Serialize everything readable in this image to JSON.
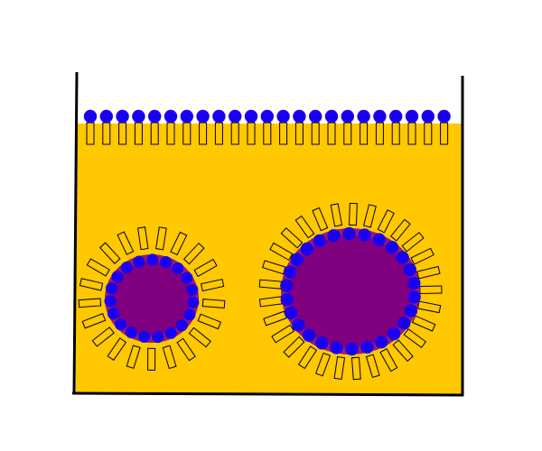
{
  "colors": {
    "background": "#ffffff",
    "liquid": "#ffc800",
    "head": "#1a00f0",
    "tail_fill": "#ffc800",
    "tail_stroke": "#000000",
    "micelle_core": "#800080",
    "micelle_rim": "#9c1a6e",
    "container_wall": "#000000"
  },
  "diagram": {
    "container": "beaker-outline",
    "liquid": "solution",
    "surface_layer": {
      "molecule_count": 23,
      "heads_up": true
    },
    "micelles": [
      {
        "name": "small-micelle",
        "head_count": 19,
        "tail_count": 21
      },
      {
        "name": "large-micelle",
        "head_count": 26,
        "tail_count": 29
      }
    ]
  }
}
